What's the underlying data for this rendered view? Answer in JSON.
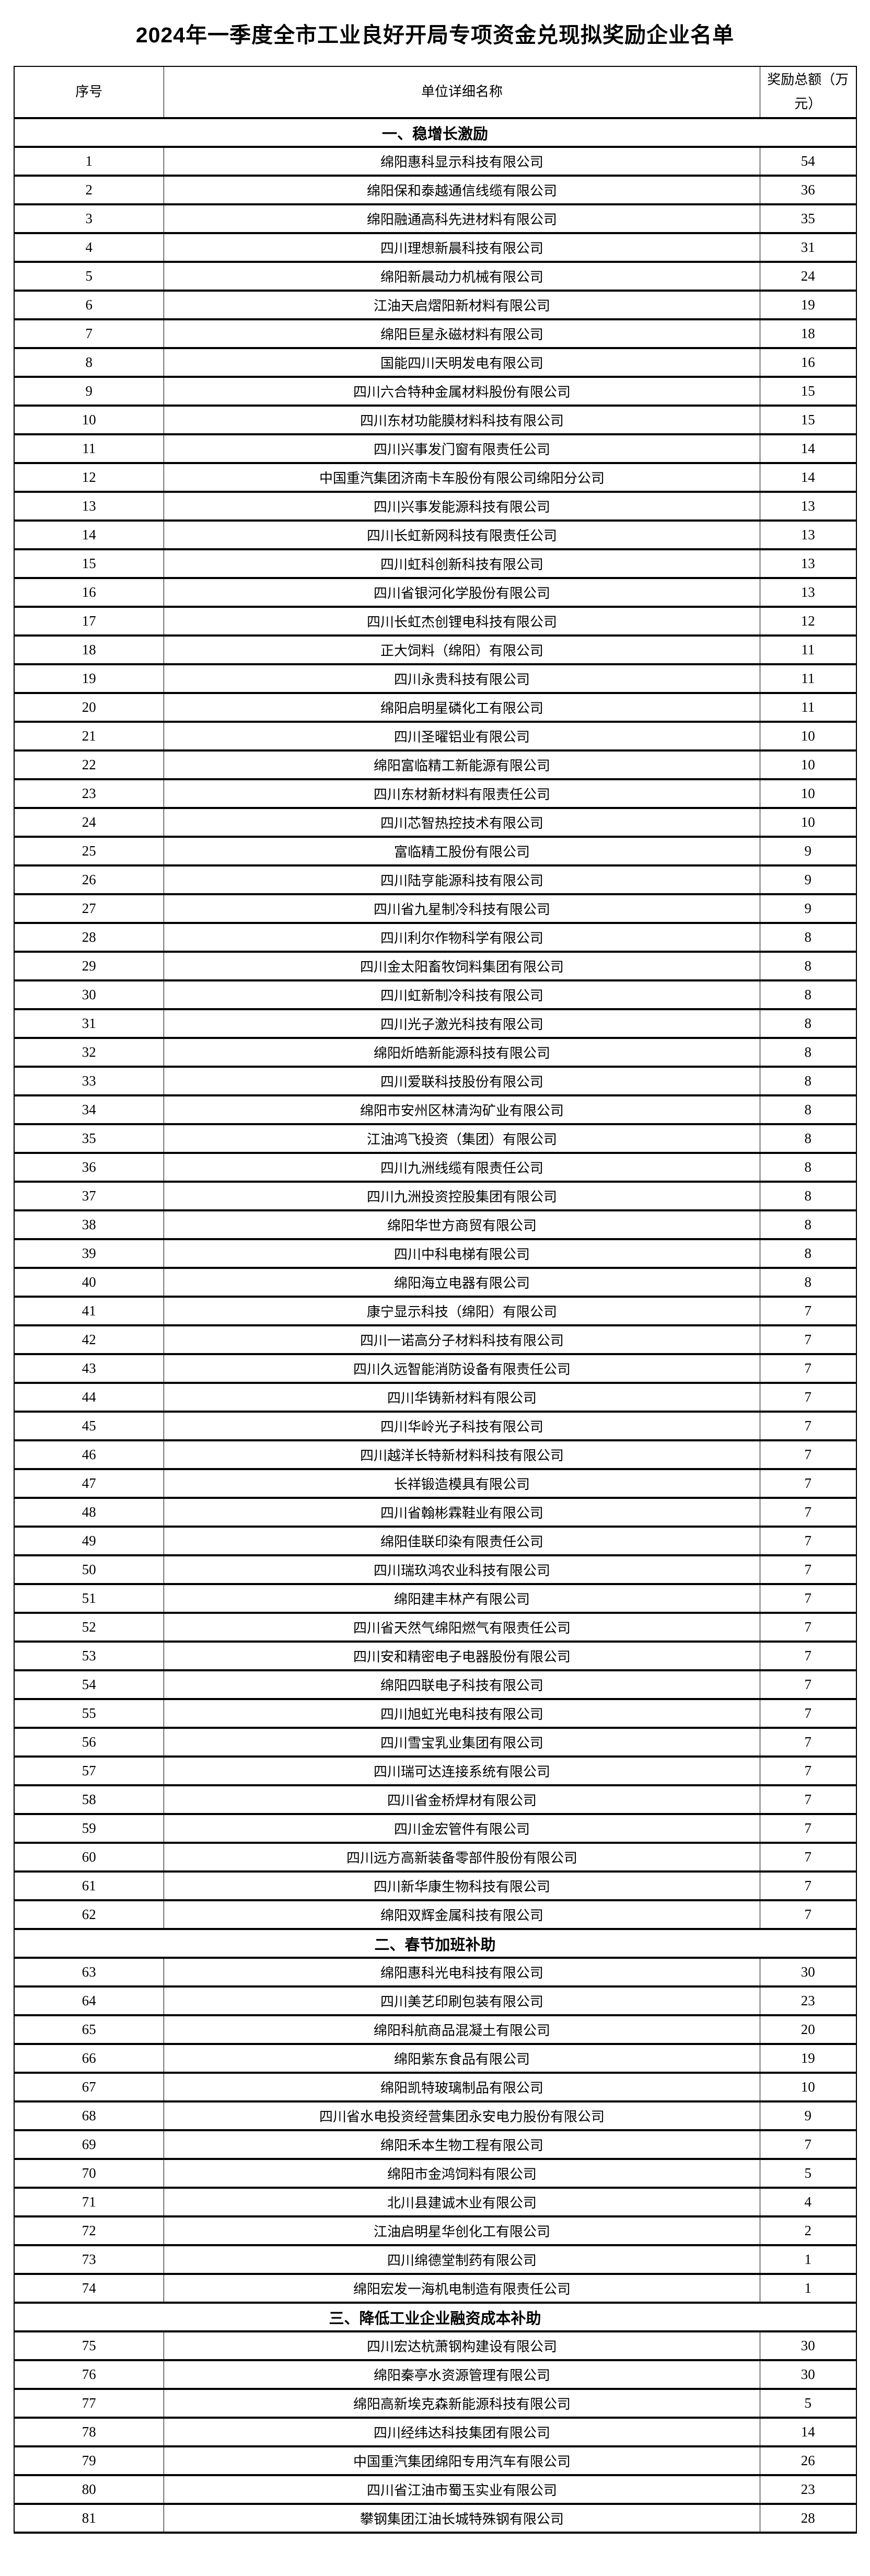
{
  "page": {
    "title": "2024年一季度全市工业良好开局专项资金兑现拟奖励企业名单"
  },
  "colors": {
    "text": "#000000",
    "background": "#ffffff",
    "border": "#000000"
  },
  "table": {
    "header": {
      "index": "序号",
      "name": "单位详细名称",
      "amount": "奖励总额（万元）"
    },
    "sections": [
      {
        "label": "一、稳增长激励",
        "rows": [
          {
            "no": 1,
            "name": "绵阳惠科显示科技有限公司",
            "amount": 54
          },
          {
            "no": 2,
            "name": "绵阳保和泰越通信线缆有限公司",
            "amount": 36
          },
          {
            "no": 3,
            "name": "绵阳融通高科先进材料有限公司",
            "amount": 35
          },
          {
            "no": 4,
            "name": "四川理想新晨科技有限公司",
            "amount": 31
          },
          {
            "no": 5,
            "name": "绵阳新晨动力机械有限公司",
            "amount": 24
          },
          {
            "no": 6,
            "name": "江油天启熠阳新材料有限公司",
            "amount": 19
          },
          {
            "no": 7,
            "name": "绵阳巨星永磁材料有限公司",
            "amount": 18
          },
          {
            "no": 8,
            "name": "国能四川天明发电有限公司",
            "amount": 16
          },
          {
            "no": 9,
            "name": "四川六合特种金属材料股份有限公司",
            "amount": 15
          },
          {
            "no": 10,
            "name": "四川东材功能膜材料科技有限公司",
            "amount": 15
          },
          {
            "no": 11,
            "name": "四川兴事发门窗有限责任公司",
            "amount": 14
          },
          {
            "no": 12,
            "name": "中国重汽集团济南卡车股份有限公司绵阳分公司",
            "amount": 14
          },
          {
            "no": 13,
            "name": "四川兴事发能源科技有限公司",
            "amount": 13
          },
          {
            "no": 14,
            "name": "四川长虹新网科技有限责任公司",
            "amount": 13
          },
          {
            "no": 15,
            "name": "四川虹科创新科技有限公司",
            "amount": 13
          },
          {
            "no": 16,
            "name": "四川省银河化学股份有限公司",
            "amount": 13
          },
          {
            "no": 17,
            "name": "四川长虹杰创锂电科技有限公司",
            "amount": 12
          },
          {
            "no": 18,
            "name": "正大饲料（绵阳）有限公司",
            "amount": 11
          },
          {
            "no": 19,
            "name": "四川永贵科技有限公司",
            "amount": 11
          },
          {
            "no": 20,
            "name": "绵阳启明星磷化工有限公司",
            "amount": 11
          },
          {
            "no": 21,
            "name": "四川圣曜铝业有限公司",
            "amount": 10
          },
          {
            "no": 22,
            "name": "绵阳富临精工新能源有限公司",
            "amount": 10
          },
          {
            "no": 23,
            "name": "四川东材新材料有限责任公司",
            "amount": 10
          },
          {
            "no": 24,
            "name": "四川芯智热控技术有限公司",
            "amount": 10
          },
          {
            "no": 25,
            "name": "富临精工股份有限公司",
            "amount": 9
          },
          {
            "no": 26,
            "name": "四川陆亨能源科技有限公司",
            "amount": 9
          },
          {
            "no": 27,
            "name": "四川省九星制冷科技有限公司",
            "amount": 9
          },
          {
            "no": 28,
            "name": "四川利尔作物科学有限公司",
            "amount": 8
          },
          {
            "no": 29,
            "name": "四川金太阳畜牧饲料集团有限公司",
            "amount": 8
          },
          {
            "no": 30,
            "name": "四川虹新制冷科技有限公司",
            "amount": 8
          },
          {
            "no": 31,
            "name": "四川光子激光科技有限公司",
            "amount": 8
          },
          {
            "no": 32,
            "name": "绵阳炘皓新能源科技有限公司",
            "amount": 8
          },
          {
            "no": 33,
            "name": "四川爱联科技股份有限公司",
            "amount": 8
          },
          {
            "no": 34,
            "name": "绵阳市安州区林清沟矿业有限公司",
            "amount": 8
          },
          {
            "no": 35,
            "name": "江油鸿飞投资（集团）有限公司",
            "amount": 8
          },
          {
            "no": 36,
            "name": "四川九洲线缆有限责任公司",
            "amount": 8
          },
          {
            "no": 37,
            "name": "四川九洲投资控股集团有限公司",
            "amount": 8
          },
          {
            "no": 38,
            "name": "绵阳华世方商贸有限公司",
            "amount": 8
          },
          {
            "no": 39,
            "name": "四川中科电梯有限公司",
            "amount": 8
          },
          {
            "no": 40,
            "name": "绵阳海立电器有限公司",
            "amount": 8
          },
          {
            "no": 41,
            "name": "康宁显示科技（绵阳）有限公司",
            "amount": 7
          },
          {
            "no": 42,
            "name": "四川一诺高分子材料科技有限公司",
            "amount": 7
          },
          {
            "no": 43,
            "name": "四川久远智能消防设备有限责任公司",
            "amount": 7
          },
          {
            "no": 44,
            "name": "四川华铸新材料有限公司",
            "amount": 7
          },
          {
            "no": 45,
            "name": "四川华岭光子科技有限公司",
            "amount": 7
          },
          {
            "no": 46,
            "name": "四川越洋长特新材料科技有限公司",
            "amount": 7
          },
          {
            "no": 47,
            "name": "长祥锻造模具有限公司",
            "amount": 7
          },
          {
            "no": 48,
            "name": "四川省翰彬霖鞋业有限公司",
            "amount": 7
          },
          {
            "no": 49,
            "name": "绵阳佳联印染有限责任公司",
            "amount": 7
          },
          {
            "no": 50,
            "name": "四川瑞玖鸿农业科技有限公司",
            "amount": 7
          },
          {
            "no": 51,
            "name": "绵阳建丰林产有限公司",
            "amount": 7
          },
          {
            "no": 52,
            "name": "四川省天然气绵阳燃气有限责任公司",
            "amount": 7
          },
          {
            "no": 53,
            "name": "四川安和精密电子电器股份有限公司",
            "amount": 7
          },
          {
            "no": 54,
            "name": "绵阳四联电子科技有限公司",
            "amount": 7
          },
          {
            "no": 55,
            "name": "四川旭虹光电科技有限公司",
            "amount": 7
          },
          {
            "no": 56,
            "name": "四川雪宝乳业集团有限公司",
            "amount": 7
          },
          {
            "no": 57,
            "name": "四川瑞可达连接系统有限公司",
            "amount": 7
          },
          {
            "no": 58,
            "name": "四川省金桥焊材有限公司",
            "amount": 7
          },
          {
            "no": 59,
            "name": "四川金宏管件有限公司",
            "amount": 7
          },
          {
            "no": 60,
            "name": "四川远方高新装备零部件股份有限公司",
            "amount": 7
          },
          {
            "no": 61,
            "name": "四川新华康生物科技有限公司",
            "amount": 7
          },
          {
            "no": 62,
            "name": "绵阳双辉金属科技有限公司",
            "amount": 7
          }
        ]
      },
      {
        "label": "二、春节加班补助",
        "rows": [
          {
            "no": 63,
            "name": "绵阳惠科光电科技有限公司",
            "amount": 30
          },
          {
            "no": 64,
            "name": "四川美艺印刷包装有限公司",
            "amount": 23
          },
          {
            "no": 65,
            "name": "绵阳科航商品混凝土有限公司",
            "amount": 20
          },
          {
            "no": 66,
            "name": "绵阳紫东食品有限公司",
            "amount": 19
          },
          {
            "no": 67,
            "name": "绵阳凯特玻璃制品有限公司",
            "amount": 10
          },
          {
            "no": 68,
            "name": "四川省水电投资经营集团永安电力股份有限公司",
            "amount": 9
          },
          {
            "no": 69,
            "name": "绵阳禾本生物工程有限公司",
            "amount": 7
          },
          {
            "no": 70,
            "name": "绵阳市金鸿饲料有限公司",
            "amount": 5
          },
          {
            "no": 71,
            "name": "北川县建诚木业有限公司",
            "amount": 4
          },
          {
            "no": 72,
            "name": "江油启明星华创化工有限公司",
            "amount": 2
          },
          {
            "no": 73,
            "name": "四川绵德堂制药有限公司",
            "amount": 1
          },
          {
            "no": 74,
            "name": "绵阳宏发一海机电制造有限责任公司",
            "amount": 1
          }
        ]
      },
      {
        "label": "三、降低工业企业融资成本补助",
        "rows": [
          {
            "no": 75,
            "name": "四川宏达杭萧钢构建设有限公司",
            "amount": 30
          },
          {
            "no": 76,
            "name": "绵阳秦亭水资源管理有限公司",
            "amount": 30
          },
          {
            "no": 77,
            "name": "绵阳高新埃克森新能源科技有限公司",
            "amount": 5
          },
          {
            "no": 78,
            "name": "四川经纬达科技集团有限公司",
            "amount": 14
          },
          {
            "no": 79,
            "name": "中国重汽集团绵阳专用汽车有限公司",
            "amount": 26
          },
          {
            "no": 80,
            "name": "四川省江油市蜀玉实业有限公司",
            "amount": 23
          },
          {
            "no": 81,
            "name": "攀钢集团江油长城特殊钢有限公司",
            "amount": 28
          }
        ]
      }
    ]
  }
}
